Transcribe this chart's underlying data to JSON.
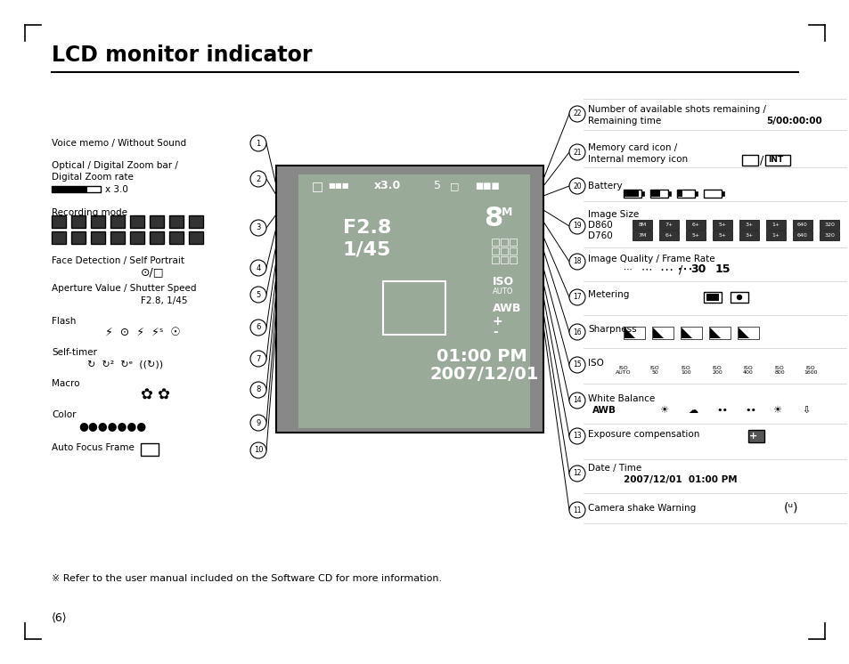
{
  "title": "LCD monitor indicator",
  "background_color": "#ffffff",
  "text_color": "#000000",
  "page_number": "⟨6⟩",
  "footnote": "※ Refer to the user manual included on the Software CD for more information."
}
